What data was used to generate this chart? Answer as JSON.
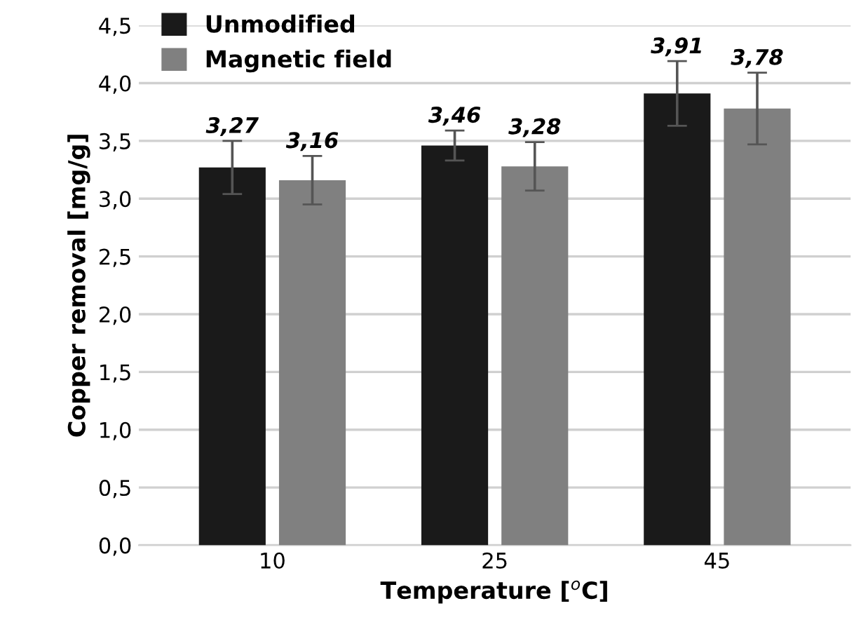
{
  "chart_data": {
    "type": "bar",
    "xlabel": "Temperature [$^{o}$C]",
    "ylabel": "Copper removal [mg/g]",
    "categories": [
      "10",
      "25",
      "45"
    ],
    "series": [
      {
        "name": "Unmodified",
        "color": "#1a1a1a",
        "values": [
          3.27,
          3.46,
          3.91
        ],
        "errors": [
          0.23,
          0.13,
          0.28
        ],
        "value_labels": [
          "3,27",
          "3,46",
          "3,91"
        ]
      },
      {
        "name": "Magnetic field",
        "color": "#808080",
        "values": [
          3.16,
          3.28,
          3.78
        ],
        "errors": [
          0.21,
          0.21,
          0.31
        ],
        "value_labels": [
          "3,16",
          "3,28",
          "3,78"
        ]
      }
    ],
    "ylim": [
      0,
      4.5
    ],
    "yticks": [
      {
        "value": 0,
        "label": "0,0"
      },
      {
        "value": 0.5,
        "label": "0,5"
      },
      {
        "value": 1,
        "label": "1,0"
      },
      {
        "value": 1.5,
        "label": "1,5"
      },
      {
        "value": 2,
        "label": "2,0"
      },
      {
        "value": 2.5,
        "label": "2,5"
      },
      {
        "value": 3,
        "label": "3,0"
      },
      {
        "value": 3.5,
        "label": "3,5"
      },
      {
        "value": 4,
        "label": "4,0"
      },
      {
        "value": 4.5,
        "label": "4,5"
      }
    ],
    "grid": "y",
    "legend": "top left"
  }
}
